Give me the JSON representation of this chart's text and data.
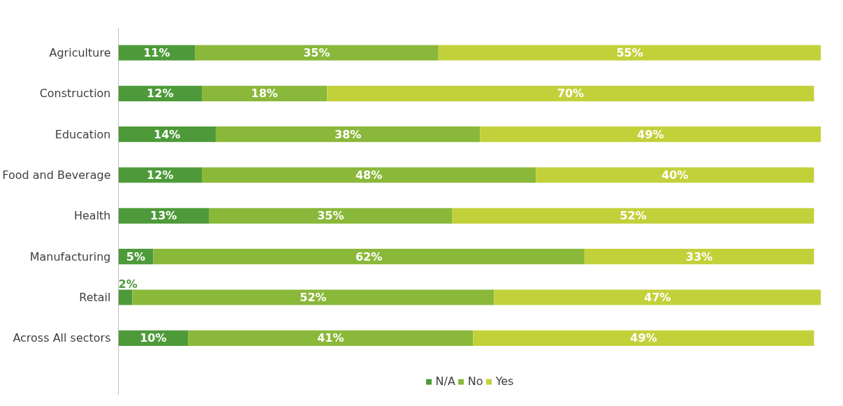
{
  "chart_data": {
    "type": "bar",
    "orientation": "horizontal",
    "stacked": true,
    "legend": "bottom",
    "grid": false,
    "categories": [
      "Agriculture",
      "Construction",
      "Education",
      "Food and Beverage",
      "Health",
      "Manufacturing",
      "Retail",
      "Across All sectors"
    ],
    "series": [
      {
        "name": "N/A",
        "color": "#4e9a3a",
        "values": [
          11,
          12,
          14,
          12,
          13,
          5,
          2,
          10
        ],
        "value_labels": [
          "11%",
          "12%",
          "14%",
          "12%",
          "13%",
          "5%",
          "2%",
          "10%"
        ]
      },
      {
        "name": "No",
        "color": "#8ab83a",
        "values": [
          35,
          18,
          38,
          48,
          35,
          62,
          52,
          41
        ],
        "value_labels": [
          "35%",
          "18%",
          "38%",
          "48%",
          "35%",
          "62%",
          "52%",
          "41%"
        ]
      },
      {
        "name": "Yes",
        "color": "#c2d13a",
        "values": [
          55,
          70,
          49,
          40,
          52,
          33,
          47,
          49
        ],
        "value_labels": [
          "55%",
          "70%",
          "49%",
          "40%",
          "52%",
          "33%",
          "47%",
          "49%"
        ]
      }
    ]
  }
}
